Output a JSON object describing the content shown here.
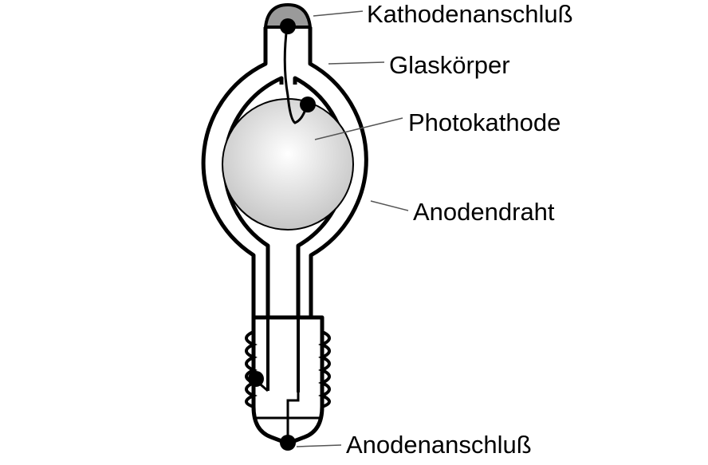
{
  "labels": {
    "cathode_terminal": "Kathodenanschluß",
    "glass_body": "Glaskörper",
    "photocathode": "Photokathode",
    "anode_wire": "Anodendraht",
    "anode_terminal": "Anodenanschluß"
  },
  "colors": {
    "stroke": "#000000",
    "cap_fill": "#9a9a9a",
    "cathode_gradient_center": "#ffffff",
    "cathode_gradient_edge": "#c8c8c8",
    "leader_line": "#555555"
  }
}
